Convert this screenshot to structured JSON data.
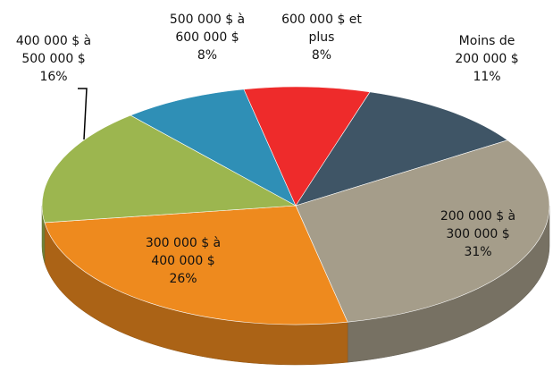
{
  "chart_data": {
    "type": "pie",
    "categories": [
      "Moins de 200 000 $",
      "200 000 $ à 300 000 $",
      "300 000 $ à 400 000 $",
      "400 000 $ à 500 000 $",
      "500 000 $ à 600 000 $",
      "600 000 $ et plus"
    ],
    "values": [
      11,
      31,
      26,
      16,
      8,
      8
    ],
    "value_labels": [
      "11%",
      "31%",
      "26%",
      "16%",
      "8%",
      "8%"
    ],
    "colors": [
      "#3f5566",
      "#a59d8a",
      "#ee8a1e",
      "#9cb64f",
      "#2f8fb6",
      "#ee2b2b"
    ]
  }
}
